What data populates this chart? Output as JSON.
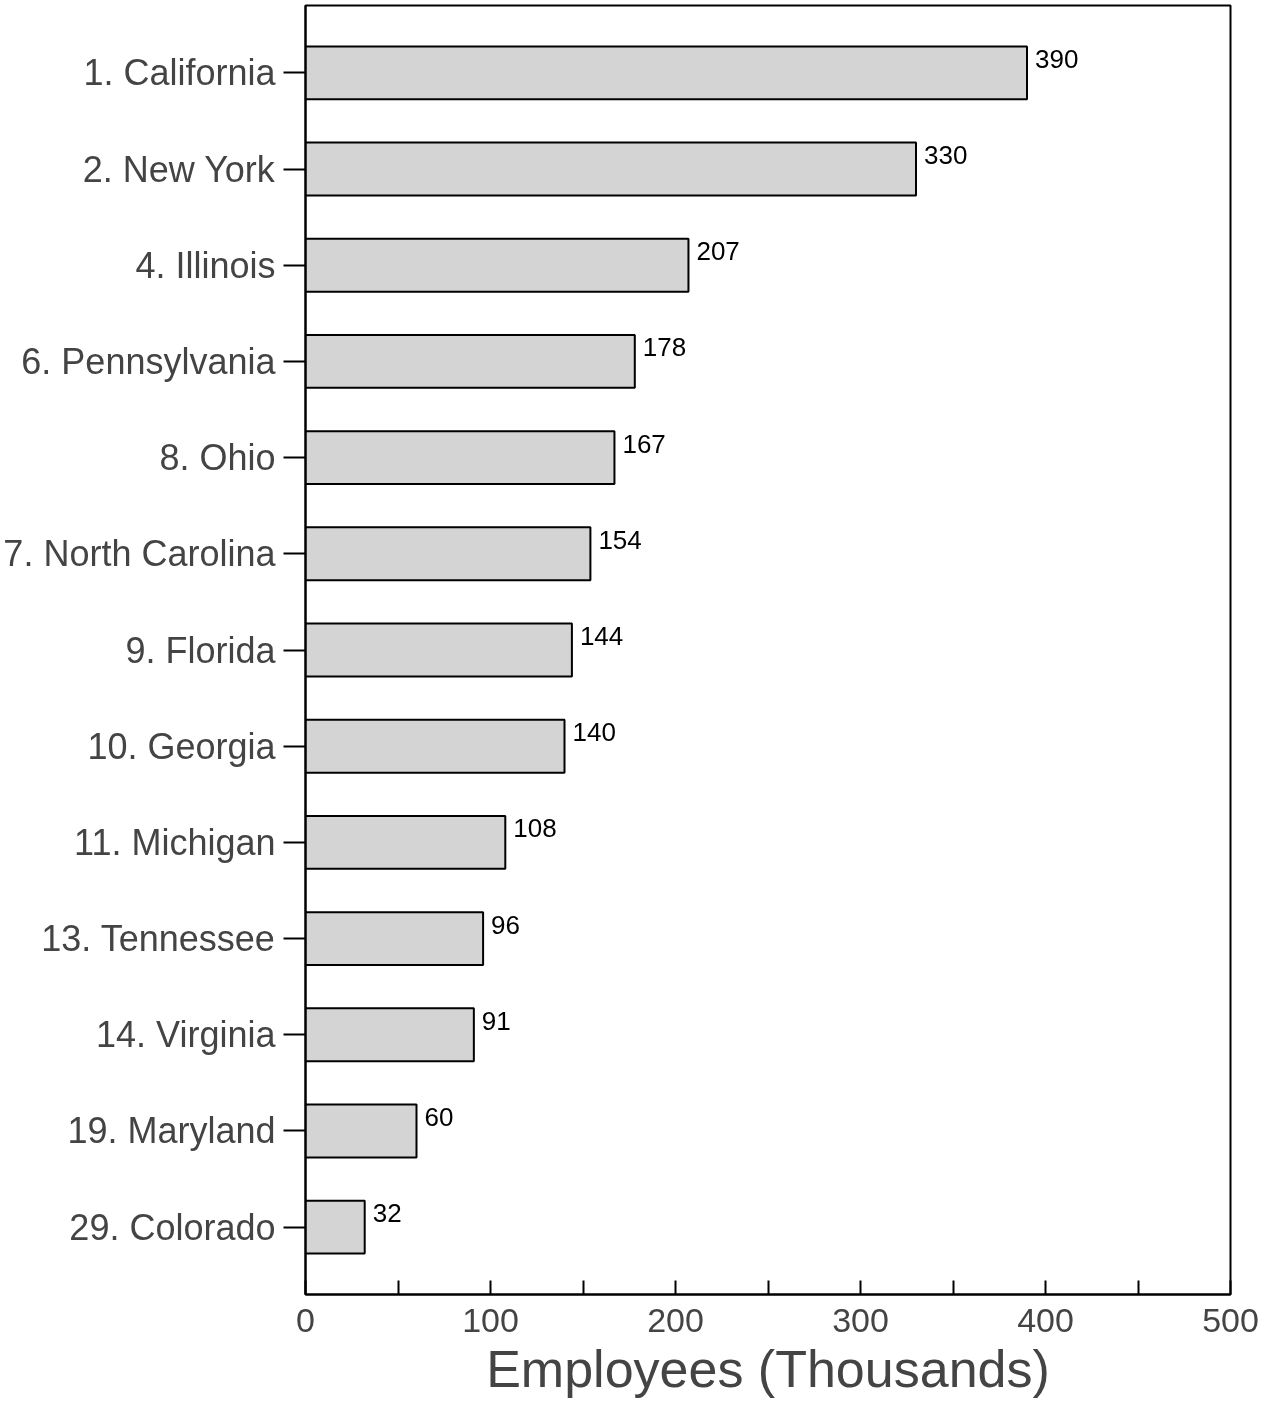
{
  "chart_data": {
    "type": "bar",
    "orientation": "horizontal",
    "categories": [
      "1. California",
      "2. New York",
      "4. Illinois",
      "6. Pennsylvania",
      "8. Ohio",
      "7. North Carolina",
      "9. Florida",
      "10. Georgia",
      "11. Michigan",
      "13. Tennessee",
      "14. Virginia",
      "19. Maryland",
      "29. Colorado"
    ],
    "values": [
      390,
      330,
      207,
      178,
      167,
      154,
      144,
      140,
      108,
      96,
      91,
      60,
      32
    ],
    "color": "#d4d4d4",
    "xlim": [
      0,
      500
    ],
    "xticks": [
      0,
      {
        "value": 50,
        "label": null
      },
      100,
      {
        "value": 150,
        "label": null
      },
      200,
      {
        "value": 250,
        "label": null
      },
      300,
      {
        "value": 350,
        "label": null
      },
      400,
      {
        "value": 450,
        "label": null
      },
      500
    ],
    "xlabel": "Employees (Thousands)",
    "data_labels": true
  }
}
